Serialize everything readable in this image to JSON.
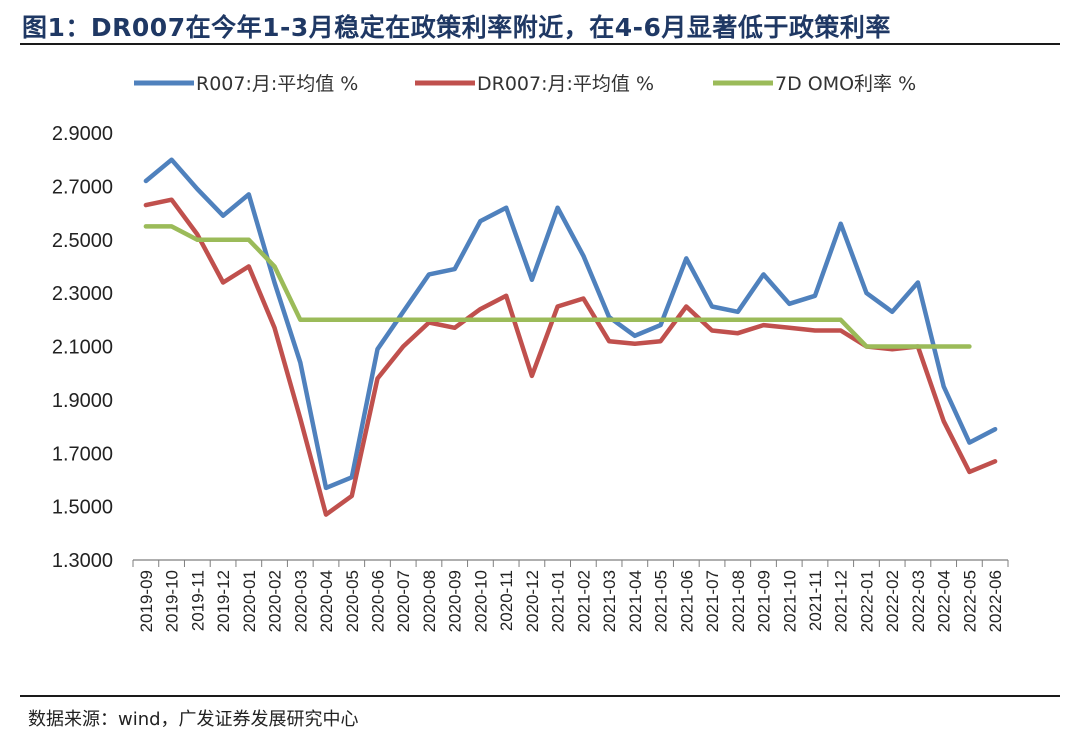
{
  "figure": {
    "title": "图1：DR007在今年1-3月稳定在政策利率附近，在4-6月显著低于政策利率",
    "source": "数据来源：wind，广发证券发展研究中心"
  },
  "chart_data": {
    "type": "line",
    "title": "图1：DR007在今年1-3月稳定在政策利率附近，在4-6月显著低于政策利率",
    "xlabel": "",
    "ylabel": "",
    "ylim": [
      1.3,
      2.9
    ],
    "yticks": [
      1.3,
      1.5,
      1.7,
      1.9,
      2.1,
      2.3,
      2.5,
      2.7,
      2.9
    ],
    "ytick_labels": [
      "1.3000",
      "1.5000",
      "1.7000",
      "1.9000",
      "2.1000",
      "2.3000",
      "2.5000",
      "2.7000",
      "2.9000"
    ],
    "grid": false,
    "legend_position": "top",
    "categories": [
      "2019-09",
      "2019-10",
      "2019-11",
      "2019-12",
      "2020-01",
      "2020-02",
      "2020-03",
      "2020-04",
      "2020-05",
      "2020-06",
      "2020-07",
      "2020-08",
      "2020-09",
      "2020-10",
      "2020-11",
      "2020-12",
      "2021-01",
      "2021-02",
      "2021-03",
      "2021-04",
      "2021-05",
      "2021-06",
      "2021-07",
      "2021-08",
      "2021-09",
      "2021-10",
      "2021-11",
      "2021-12",
      "2022-01",
      "2022-02",
      "2022-03",
      "2022-04",
      "2022-05",
      "2022-06"
    ],
    "series": [
      {
        "name": "R007:月:平均值 %",
        "color": "#4f81bd",
        "values": [
          2.72,
          2.8,
          2.69,
          2.59,
          2.67,
          2.34,
          2.04,
          1.57,
          1.61,
          2.09,
          2.23,
          2.37,
          2.39,
          2.57,
          2.62,
          2.35,
          2.62,
          2.44,
          2.21,
          2.14,
          2.18,
          2.43,
          2.25,
          2.23,
          2.37,
          2.26,
          2.29,
          2.56,
          2.3,
          2.23,
          2.34,
          1.95,
          1.74,
          1.79
        ]
      },
      {
        "name": "DR007:月:平均值 %",
        "color": "#c0504d",
        "values": [
          2.63,
          2.65,
          2.52,
          2.34,
          2.4,
          2.17,
          1.83,
          1.47,
          1.54,
          1.98,
          2.1,
          2.19,
          2.17,
          2.24,
          2.29,
          1.99,
          2.25,
          2.28,
          2.12,
          2.11,
          2.12,
          2.25,
          2.16,
          2.15,
          2.18,
          2.17,
          2.16,
          2.16,
          2.1,
          2.09,
          2.1,
          1.82,
          1.63,
          1.67
        ]
      },
      {
        "name": "7D  OMO利率 %",
        "color": "#9bbb59",
        "values": [
          2.55,
          2.55,
          2.5,
          2.5,
          2.5,
          2.4,
          2.2,
          2.2,
          2.2,
          2.2,
          2.2,
          2.2,
          2.2,
          2.2,
          2.2,
          2.2,
          2.2,
          2.2,
          2.2,
          2.2,
          2.2,
          2.2,
          2.2,
          2.2,
          2.2,
          2.2,
          2.2,
          2.2,
          2.1,
          2.1,
          2.1,
          2.1,
          2.1,
          null
        ]
      }
    ]
  }
}
